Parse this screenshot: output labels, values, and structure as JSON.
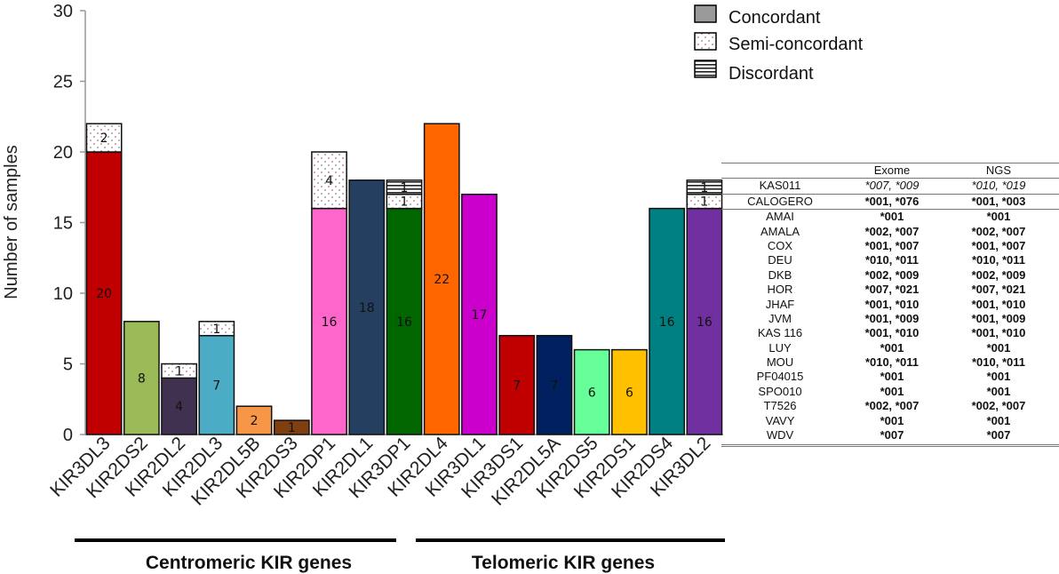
{
  "chart_data": {
    "type": "bar",
    "stacked": true,
    "ylabel": "Number of samples",
    "xlabel": "",
    "ylim": [
      0,
      30
    ],
    "yticks": [
      0,
      5,
      10,
      15,
      20,
      25,
      30
    ],
    "categories": [
      "KIR3DL3",
      "KIR2DS2",
      "KIR2DL2",
      "KIR2DL3",
      "KIR2DL5B",
      "KIR2DS3",
      "KIR2DP1",
      "KIR2DL1",
      "KIR3DP1",
      "KIR2DL4",
      "KIR3DL1",
      "KIR3DS1",
      "KIR2DL5A",
      "KIR2DS5",
      "KIR2DS1",
      "KIR2DS4",
      "KIR3DL2"
    ],
    "bar_colors": [
      "#c00000",
      "#9bbb59",
      "#403151",
      "#4bacc6",
      "#f79646",
      "#7f3f10",
      "#ff66cc",
      "#243f60",
      "#006600",
      "#ff6600",
      "#cc00cc",
      "#c00000",
      "#002060",
      "#66ff99",
      "#ffc000",
      "#008080",
      "#7030a0"
    ],
    "series": [
      {
        "name": "Concordant",
        "values": [
          20,
          8,
          4,
          7,
          2,
          1,
          16,
          18,
          16,
          22,
          17,
          7,
          7,
          6,
          6,
          16,
          16
        ]
      },
      {
        "name": "Semi-concordant",
        "values": [
          2,
          0,
          1,
          1,
          0,
          0,
          4,
          0,
          1,
          0,
          0,
          0,
          0,
          0,
          0,
          0,
          1
        ]
      },
      {
        "name": "Discordant",
        "values": [
          0,
          0,
          0,
          0,
          0,
          0,
          0,
          0,
          1,
          0,
          0,
          0,
          0,
          0,
          0,
          0,
          1
        ]
      }
    ],
    "legend": [
      "Concordant",
      "Semi-concordant",
      "Discordant"
    ],
    "legend_position": "top-right",
    "groups": [
      {
        "label": "Centromeric KIR genes",
        "from": "KIR3DL3",
        "to": "KIR3DP1"
      },
      {
        "label": "Telomeric KIR genes",
        "from": "KIR2DL4",
        "to": "KIR3DL2"
      }
    ]
  },
  "allele_table": {
    "headers": [
      "",
      "Exome",
      "NGS"
    ],
    "rows": [
      {
        "sample": "KAS011",
        "exome": "*007, *009",
        "ngs": "*010, *019",
        "style": "italic"
      },
      {
        "sample": "CALOGERO",
        "exome": "*001, *076",
        "ngs": "*001, *003",
        "style": "mixed"
      },
      {
        "sample": "AMAI",
        "exome": "*001",
        "ngs": "*001",
        "style": "bold"
      },
      {
        "sample": "AMALA",
        "exome": "*002, *007",
        "ngs": "*002, *007",
        "style": "bold"
      },
      {
        "sample": "COX",
        "exome": "*001, *007",
        "ngs": "*001, *007",
        "style": "bold"
      },
      {
        "sample": "DEU",
        "exome": "*010, *011",
        "ngs": "*010, *011",
        "style": "bold"
      },
      {
        "sample": "DKB",
        "exome": "*002, *009",
        "ngs": "*002, *009",
        "style": "bold"
      },
      {
        "sample": "HOR",
        "exome": "*007, *021",
        "ngs": "*007, *021",
        "style": "bold"
      },
      {
        "sample": "JHAF",
        "exome": "*001, *010",
        "ngs": "*001, *010",
        "style": "bold"
      },
      {
        "sample": "JVM",
        "exome": "*001, *009",
        "ngs": "*001, *009",
        "style": "bold"
      },
      {
        "sample": "KAS 116",
        "exome": "*001, *010",
        "ngs": "*001, *010",
        "style": "bold"
      },
      {
        "sample": "LUY",
        "exome": "*001",
        "ngs": "*001",
        "style": "bold"
      },
      {
        "sample": "MOU",
        "exome": "*010, *011",
        "ngs": "*010, *011",
        "style": "bold"
      },
      {
        "sample": "PF04015",
        "exome": "*001",
        "ngs": "*001",
        "style": "bold"
      },
      {
        "sample": "SPO010",
        "exome": "*001",
        "ngs": "*001",
        "style": "bold"
      },
      {
        "sample": "T7526",
        "exome": "*002, *007",
        "ngs": "*002, *007",
        "style": "bold"
      },
      {
        "sample": "VAVY",
        "exome": "*001",
        "ngs": "*001",
        "style": "bold"
      },
      {
        "sample": "WDV",
        "exome": "*007",
        "ngs": "*007",
        "style": "bold"
      }
    ]
  }
}
